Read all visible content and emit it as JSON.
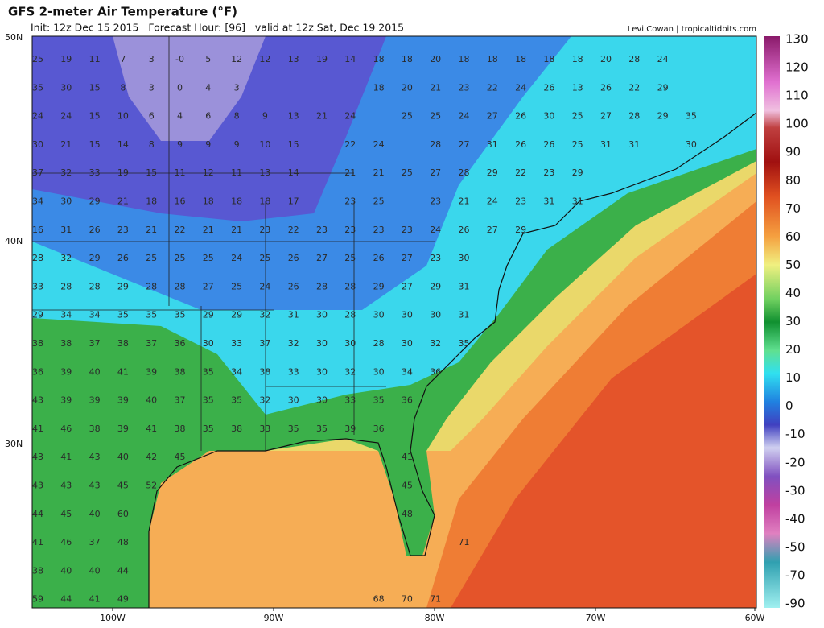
{
  "header": {
    "title": "GFS 2-meter Air Temperature (°F)",
    "subtitle": "Init: 12z Dec 15 2015   Forecast Hour: [96]   valid at 12z Sat, Dec 19 2015",
    "credit": "Levi Cowan | tropicaltidbits.com"
  },
  "map": {
    "latitude_labels": [
      "50N",
      "40N",
      "30N"
    ],
    "longitude_labels": [
      "100W",
      "90W",
      "80W",
      "70W",
      "60W"
    ],
    "temperature_rows": [
      [
        25,
        19,
        11,
        7,
        3,
        "-0",
        5,
        12,
        12,
        13,
        19,
        14,
        18,
        18,
        20,
        18,
        18,
        18,
        18,
        18,
        20,
        28,
        24
      ],
      [
        35,
        30,
        15,
        8,
        3,
        0,
        4,
        3,
        null,
        null,
        null,
        null,
        18,
        20,
        21,
        23,
        22,
        24,
        26,
        13,
        26,
        22,
        29
      ],
      [
        24,
        24,
        15,
        10,
        6,
        4,
        6,
        8,
        9,
        13,
        21,
        24,
        null,
        25,
        25,
        24,
        27,
        26,
        30,
        25,
        27,
        28,
        29,
        35
      ],
      [
        30,
        21,
        15,
        14,
        8,
        9,
        9,
        9,
        10,
        15,
        null,
        22,
        24,
        null,
        28,
        27,
        31,
        26,
        26,
        25,
        31,
        31,
        null,
        30
      ],
      [
        37,
        32,
        33,
        19,
        15,
        11,
        12,
        11,
        13,
        14,
        null,
        21,
        21,
        25,
        27,
        28,
        29,
        22,
        23,
        29
      ],
      [
        34,
        30,
        29,
        21,
        18,
        16,
        18,
        18,
        18,
        17,
        null,
        23,
        25,
        null,
        23,
        21,
        24,
        23,
        31,
        31
      ],
      [
        16,
        31,
        26,
        23,
        21,
        22,
        21,
        21,
        23,
        22,
        23,
        23,
        23,
        23,
        24,
        26,
        27,
        29
      ],
      [
        28,
        32,
        29,
        26,
        25,
        25,
        25,
        24,
        25,
        26,
        27,
        25,
        26,
        27,
        23,
        30
      ],
      [
        33,
        28,
        28,
        29,
        28,
        28,
        27,
        25,
        24,
        26,
        28,
        28,
        29,
        27,
        29,
        31
      ],
      [
        29,
        34,
        34,
        35,
        35,
        35,
        29,
        29,
        32,
        31,
        30,
        28,
        30,
        30,
        30,
        31
      ],
      [
        38,
        38,
        37,
        38,
        37,
        36,
        30,
        33,
        37,
        32,
        30,
        30,
        28,
        30,
        32,
        35
      ],
      [
        36,
        39,
        40,
        41,
        39,
        38,
        35,
        34,
        38,
        33,
        30,
        32,
        30,
        34,
        36
      ],
      [
        43,
        39,
        39,
        39,
        40,
        37,
        35,
        35,
        32,
        30,
        30,
        33,
        35,
        36
      ],
      [
        41,
        46,
        38,
        39,
        41,
        38,
        35,
        38,
        33,
        35,
        35,
        39,
        36
      ],
      [
        43,
        41,
        43,
        40,
        42,
        45,
        null,
        null,
        null,
        null,
        null,
        null,
        null,
        41
      ],
      [
        43,
        43,
        43,
        45,
        52,
        null,
        null,
        null,
        null,
        null,
        null,
        null,
        null,
        45
      ],
      [
        44,
        45,
        40,
        60,
        null,
        null,
        null,
        null,
        null,
        null,
        null,
        null,
        null,
        48
      ],
      [
        41,
        46,
        37,
        48,
        null,
        null,
        null,
        null,
        null,
        null,
        null,
        null,
        null,
        null,
        null,
        71
      ],
      [
        38,
        40,
        40,
        44
      ],
      [
        59,
        44,
        41,
        49,
        null,
        null,
        null,
        null,
        null,
        null,
        null,
        null,
        68,
        70,
        71
      ]
    ]
  },
  "colorbar": {
    "labels": [
      130,
      120,
      110,
      100,
      90,
      80,
      70,
      60,
      50,
      40,
      30,
      20,
      10,
      0,
      -10,
      -20,
      -30,
      -40,
      -50,
      -70,
      -90
    ]
  }
}
